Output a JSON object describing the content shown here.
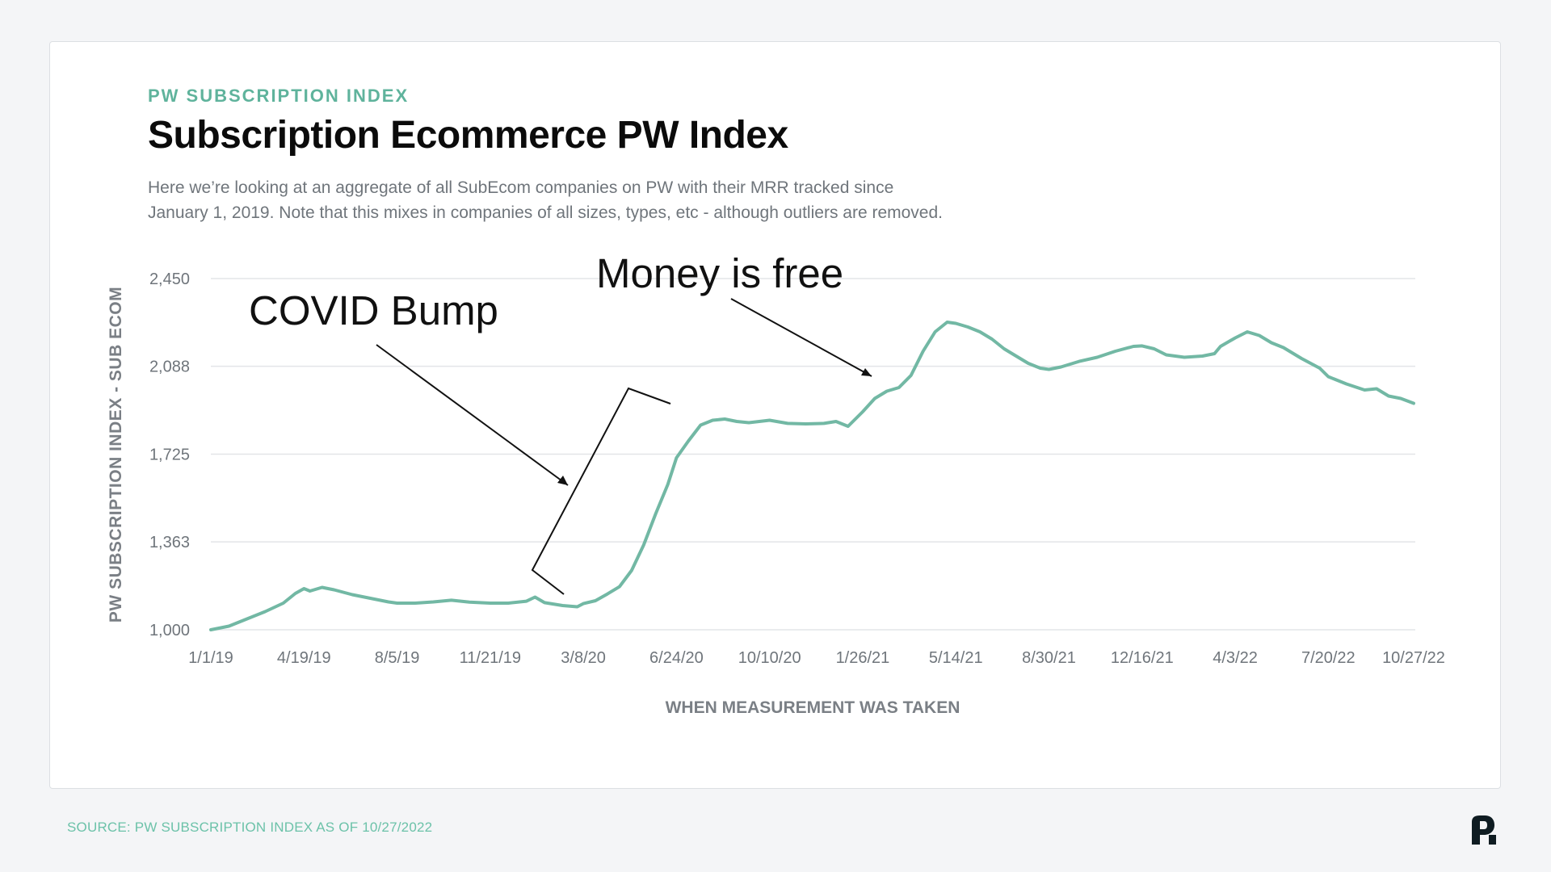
{
  "eyebrow": "PW SUBSCRIPTION INDEX",
  "title": "Subscription Ecommerce PW Index",
  "description_lines": [
    "Here we’re looking at an aggregate of all SubEcom companies on PW with their MRR tracked since",
    "January 1, 2019. Note that this mixes in companies of all sizes, types, etc - although outliers are removed."
  ],
  "source": "SOURCE: PW SUBSCRIPTION INDEX AS OF 10/27/2022",
  "logo_icon": "pw-logo-icon",
  "colors": {
    "accent": "#5fb39c",
    "line": "#72b8a4",
    "grid": "#e3e5e8"
  },
  "annotations": {
    "covid": "COVID Bump",
    "money": "Money is free"
  },
  "chart_data": {
    "type": "line",
    "xlabel": "WHEN MEASUREMENT WAS TAKEN",
    "ylabel": "PW SUBSCRIPTION INDEX - SUB ECOM",
    "ylim": [
      1000,
      2450
    ],
    "yticks": [
      1000,
      1363,
      1725,
      2088,
      2450
    ],
    "ytick_labels": [
      "1,000",
      "1,363",
      "1,725",
      "2,088",
      "2,450"
    ],
    "xticks": [
      "1/1/19",
      "4/19/19",
      "8/5/19",
      "11/21/19",
      "3/8/20",
      "6/24/20",
      "10/10/20",
      "1/26/21",
      "5/14/21",
      "8/30/21",
      "12/16/21",
      "4/3/22",
      "7/20/22",
      "10/27/22"
    ],
    "xlim": [
      "1/1/19",
      "10/27/22"
    ],
    "grid": "horizontal",
    "series": [
      {
        "points": [
          [
            "1/1/19",
            1000
          ],
          [
            "1/22/19",
            1015
          ],
          [
            "2/12/19",
            1045
          ],
          [
            "3/5/19",
            1075
          ],
          [
            "3/26/19",
            1110
          ],
          [
            "4/9/19",
            1150
          ],
          [
            "4/19/19",
            1170
          ],
          [
            "4/26/19",
            1160
          ],
          [
            "5/10/19",
            1175
          ],
          [
            "5/24/19",
            1165
          ],
          [
            "6/14/19",
            1145
          ],
          [
            "7/5/19",
            1130
          ],
          [
            "7/26/19",
            1115
          ],
          [
            "8/5/19",
            1110
          ],
          [
            "8/26/19",
            1110
          ],
          [
            "9/16/19",
            1115
          ],
          [
            "10/7/19",
            1122
          ],
          [
            "10/28/19",
            1114
          ],
          [
            "11/21/19",
            1110
          ],
          [
            "12/12/19",
            1110
          ],
          [
            "1/2/20",
            1118
          ],
          [
            "1/12/20",
            1135
          ],
          [
            "1/23/20",
            1112
          ],
          [
            "2/13/20",
            1100
          ],
          [
            "3/1/20",
            1095
          ],
          [
            "3/8/20",
            1108
          ],
          [
            "3/22/20",
            1120
          ],
          [
            "4/5/20",
            1148
          ],
          [
            "4/19/20",
            1178
          ],
          [
            "5/3/20",
            1245
          ],
          [
            "5/17/20",
            1350
          ],
          [
            "5/31/20",
            1480
          ],
          [
            "6/14/20",
            1600
          ],
          [
            "6/24/20",
            1710
          ],
          [
            "7/8/20",
            1780
          ],
          [
            "7/22/20",
            1845
          ],
          [
            "8/5/20",
            1865
          ],
          [
            "8/19/20",
            1870
          ],
          [
            "9/2/20",
            1860
          ],
          [
            "9/16/20",
            1855
          ],
          [
            "10/10/20",
            1865
          ],
          [
            "10/31/20",
            1852
          ],
          [
            "11/21/20",
            1850
          ],
          [
            "12/12/20",
            1852
          ],
          [
            "12/26/20",
            1860
          ],
          [
            "1/9/21",
            1840
          ],
          [
            "1/26/21",
            1900
          ],
          [
            "2/9/21",
            1955
          ],
          [
            "2/23/21",
            1985
          ],
          [
            "3/9/21",
            2000
          ],
          [
            "3/23/21",
            2050
          ],
          [
            "4/6/21",
            2150
          ],
          [
            "4/20/21",
            2230
          ],
          [
            "5/4/21",
            2270
          ],
          [
            "5/14/21",
            2265
          ],
          [
            "5/28/21",
            2250
          ],
          [
            "6/11/21",
            2230
          ],
          [
            "6/25/21",
            2200
          ],
          [
            "7/9/21",
            2160
          ],
          [
            "7/23/21",
            2130
          ],
          [
            "8/6/21",
            2100
          ],
          [
            "8/20/21",
            2080
          ],
          [
            "8/30/21",
            2075
          ],
          [
            "9/13/21",
            2085
          ],
          [
            "10/4/21",
            2108
          ],
          [
            "10/25/21",
            2125
          ],
          [
            "11/15/21",
            2150
          ],
          [
            "12/6/21",
            2170
          ],
          [
            "12/16/21",
            2172
          ],
          [
            "12/30/21",
            2160
          ],
          [
            "1/13/22",
            2135
          ],
          [
            "2/3/22",
            2125
          ],
          [
            "2/24/22",
            2130
          ],
          [
            "3/10/22",
            2140
          ],
          [
            "3/17/22",
            2170
          ],
          [
            "4/3/22",
            2205
          ],
          [
            "4/17/22",
            2230
          ],
          [
            "5/1/22",
            2215
          ],
          [
            "5/15/22",
            2185
          ],
          [
            "5/29/22",
            2165
          ],
          [
            "6/19/22",
            2120
          ],
          [
            "7/10/22",
            2080
          ],
          [
            "7/20/22",
            2045
          ],
          [
            "8/10/22",
            2015
          ],
          [
            "8/31/22",
            1990
          ],
          [
            "9/14/22",
            1995
          ],
          [
            "9/28/22",
            1965
          ],
          [
            "10/12/22",
            1955
          ],
          [
            "10/27/22",
            1935
          ]
        ]
      }
    ]
  }
}
